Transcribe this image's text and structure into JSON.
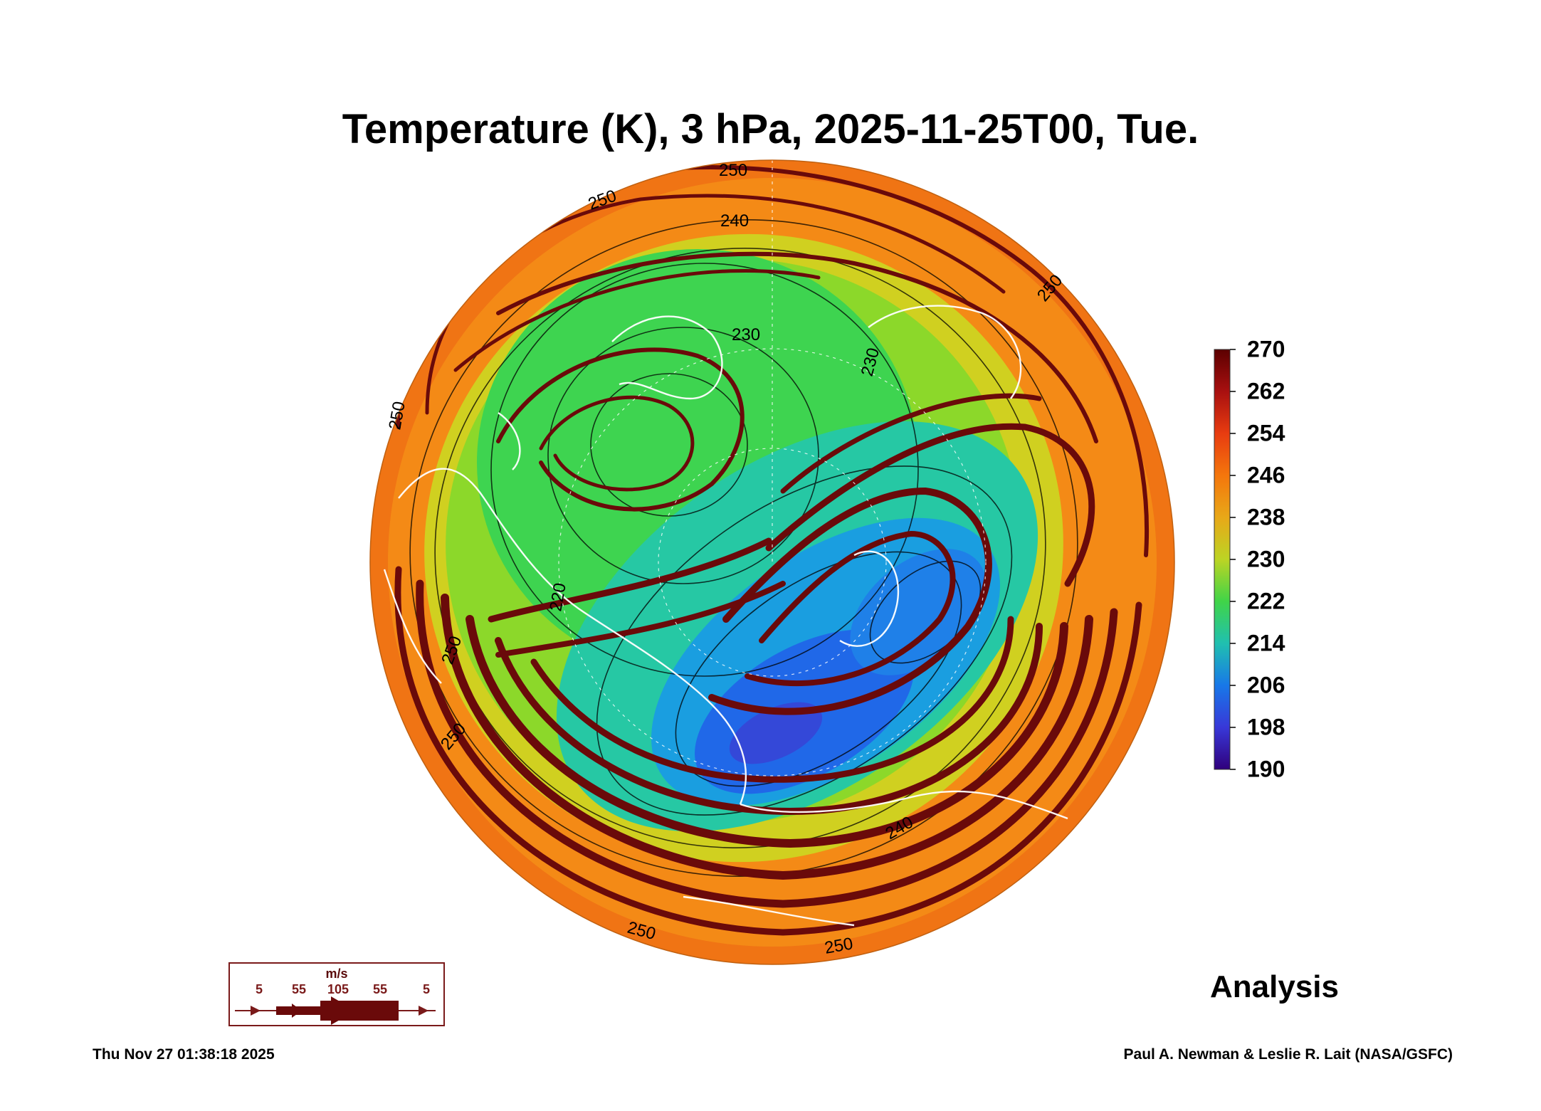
{
  "title": "Temperature (K), 3 hPa, 2025-11-25T00, Tue.",
  "colorbar": {
    "ticks": [
      "270",
      "262",
      "254",
      "246",
      "238",
      "230",
      "222",
      "214",
      "206",
      "198",
      "190"
    ],
    "colors": [
      "#5c0000",
      "#a81010",
      "#e83c10",
      "#f4760c",
      "#e8a818",
      "#bcd424",
      "#40d448",
      "#20c0b0",
      "#1878e8",
      "#3838d8",
      "#30007c"
    ]
  },
  "contour_labels": [
    "250",
    "250",
    "240",
    "230",
    "230",
    "250",
    "250",
    "220",
    "250",
    "250",
    "250",
    "250",
    "240"
  ],
  "wind_legend": {
    "unit": "m/s",
    "speeds": [
      "5",
      "55",
      "105",
      "55",
      "5"
    ]
  },
  "analysis_label": "Analysis",
  "footer": {
    "date": "Thu Nov 27 01:38:18 2025",
    "credit": "Paul A. Newman & Leslie R. Lait (NASA/GSFC)"
  }
}
